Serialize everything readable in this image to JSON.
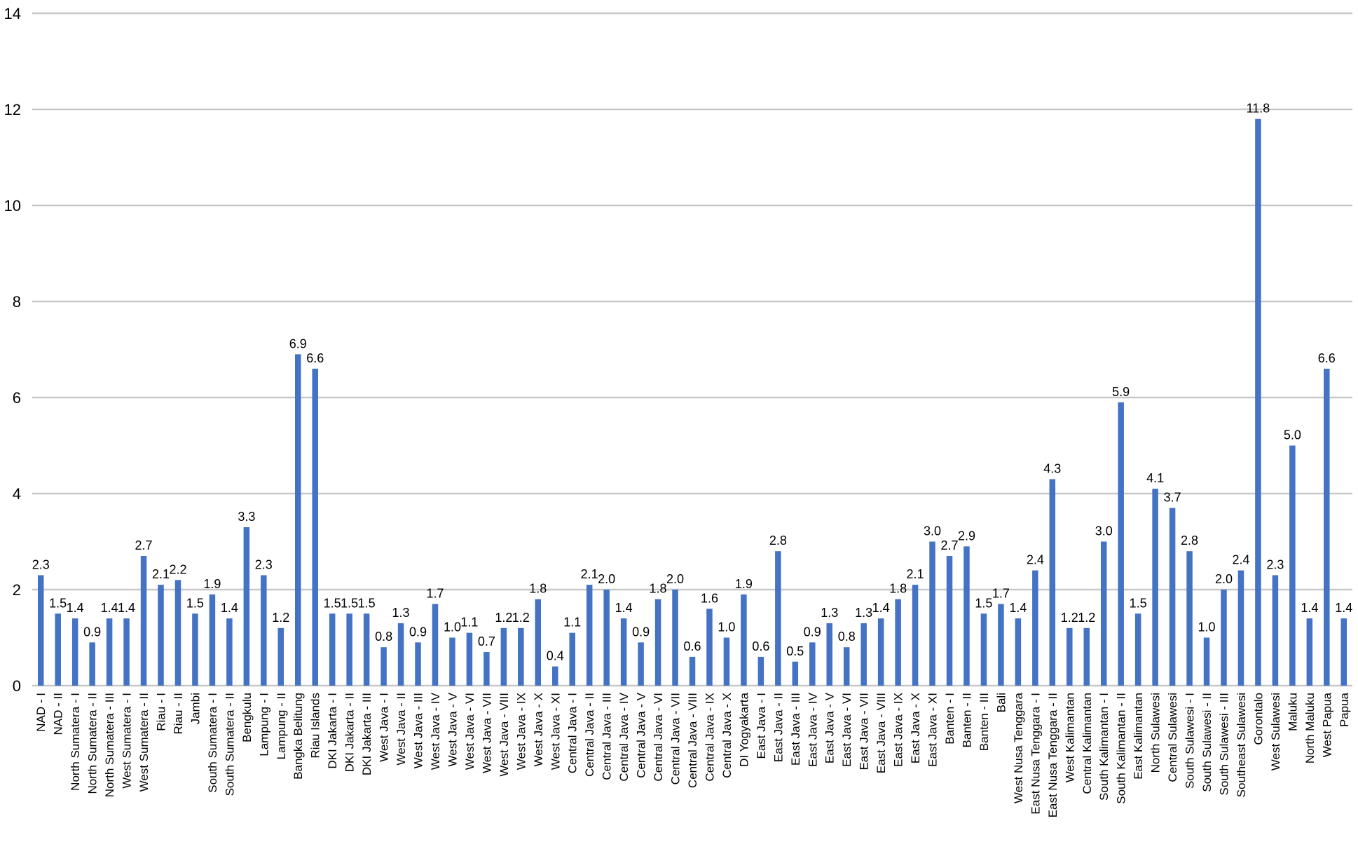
{
  "chart_data": {
    "type": "bar",
    "title": "",
    "xlabel": "",
    "ylabel": "",
    "ylim": [
      0,
      14
    ],
    "yticks": [
      "0",
      "2",
      "4",
      "6",
      "8",
      "10",
      "12",
      "14"
    ],
    "grid": true,
    "bar_color": "#4472C4",
    "grid_color": "#C8C8C8",
    "categories": [
      "NAD - I",
      "NAD - II",
      "North Sumatera - I",
      "North Sumatera - II",
      "North Sumatera - III",
      "West Sumatera - I",
      "West Sumatera - II",
      "Riau - I",
      "Riau - II",
      "Jambi",
      "South Sumatera - I",
      "South Sumatera - II",
      "Bengkulu",
      "Lampung - I",
      "Lampung - II",
      "Bangka Belitung",
      "Riau Islands",
      "DKI Jakarta - I",
      "DKI Jakarta - II",
      "DKI Jakarta - III",
      "West Java - I",
      "West Java - II",
      "West Java - III",
      "West Java - IV",
      "West Java - V",
      "West Java - VI",
      "West Java - VII",
      "West Java - VIII",
      "West Java - IX",
      "West Java - X",
      "West Java - XI",
      "Central Java - I",
      "Central Java - II",
      "Central Java - III",
      "Central Java - IV",
      "Central Java - V",
      "Central Java - VI",
      "Central Java - VII",
      "Central Java - VIII",
      "Central Java - IX",
      "Central Java - X",
      "DI Yogyakarta",
      "East Java - I",
      "East Java - II",
      "East Java - III",
      "East Java - IV",
      "East Java - V",
      "East Java - VI",
      "East Java - VII",
      "East Java - VIII",
      "East Java - IX",
      "East Java - X",
      "East Java - XI",
      "Banten - I",
      "Banten - II",
      "Banten - III",
      "Bali",
      "West Nusa Tenggara",
      "East Nusa Tenggara - I",
      "East Nusa Tenggara - II",
      "West Kalimantan",
      "Central Kalimantan",
      "South Kalimantan - I",
      "South Kalimantan - II",
      "East Kalimantan",
      "North Sulawesi",
      "Central Sulawesi",
      "South Sulawesi - I",
      "South Sulawesi - II",
      "South Sulawesi - III",
      "Southeast Sulawesi",
      "Gorontalo",
      "West Sulawesi",
      "Maluku",
      "North Maluku",
      "West Papua",
      "Papua"
    ],
    "values": [
      2.3,
      1.5,
      1.4,
      0.9,
      1.4,
      1.4,
      2.7,
      2.1,
      2.2,
      1.5,
      1.9,
      1.4,
      3.3,
      2.3,
      1.2,
      6.9,
      6.6,
      1.5,
      1.5,
      1.5,
      0.8,
      1.3,
      0.9,
      1.7,
      1.0,
      1.1,
      0.7,
      1.2,
      1.2,
      1.8,
      0.4,
      1.1,
      2.1,
      2.0,
      1.4,
      0.9,
      1.8,
      2.0,
      0.6,
      1.6,
      1.0,
      1.9,
      0.6,
      2.8,
      0.5,
      0.9,
      1.3,
      0.8,
      1.3,
      1.4,
      1.8,
      2.1,
      3.0,
      2.7,
      2.9,
      1.5,
      1.7,
      1.4,
      2.4,
      4.3,
      1.2,
      1.2,
      3.0,
      5.9,
      1.5,
      4.1,
      3.7,
      2.8,
      1.0,
      2.0,
      2.4,
      11.8,
      2.3,
      5.0,
      1.4,
      6.6,
      1.4
    ],
    "data_labels": [
      "2.3",
      "1.5",
      "1.4",
      "0.9",
      "1.4",
      "1.4",
      "2.7",
      "2.1",
      "2.2",
      "1.5",
      "1.9",
      "1.4",
      "3.3",
      "2.3",
      "1.2",
      "6.9",
      "6.6",
      "1.5",
      "1.5",
      "1.5",
      "0.8",
      "1.3",
      "0.9",
      "1.7",
      "1.0",
      "1.1",
      "0.7",
      "1.2",
      "1.2",
      "1.8",
      "0.4",
      "1.1",
      "2.1",
      "2.0",
      "1.4",
      "0.9",
      "1.8",
      "2.0",
      "0.6",
      "1.6",
      "1.0",
      "1.9",
      "0.6",
      "2.8",
      "0.5",
      "0.9",
      "1.3",
      "0.8",
      "1.3",
      "1.4",
      "1.8",
      "2.1",
      "3.0",
      "2.7",
      "2.9",
      "1.5",
      "1.7",
      "1.4",
      "2.4",
      "4.3",
      "1.2",
      "1.2",
      "3.0",
      "5.9",
      "1.5",
      "4.1",
      "3.7",
      "2.8",
      "1.0",
      "2.0",
      "2.4",
      "11.8",
      "2.3",
      "5.0",
      "1.4",
      "6.6",
      "1.4"
    ]
  }
}
